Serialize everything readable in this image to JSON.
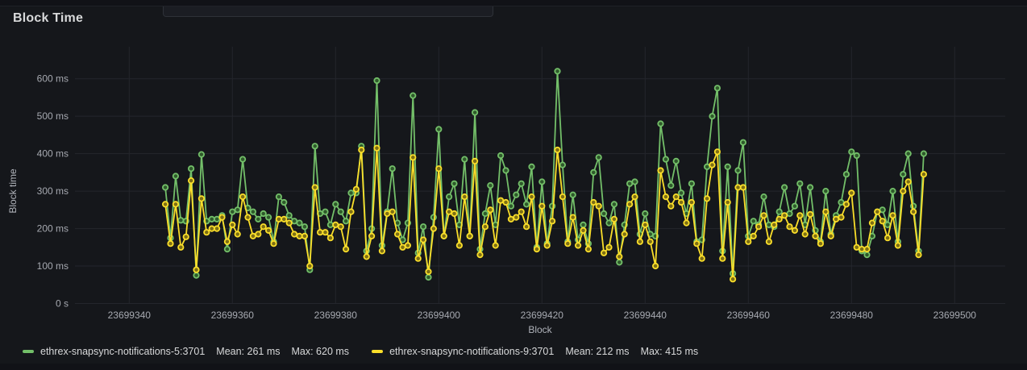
{
  "panel": {
    "title": "Block Time"
  },
  "chart_data": {
    "type": "line",
    "title": "Block Time",
    "xlabel": "Block",
    "ylabel": "Block time",
    "grid": true,
    "legend_position": "bottom-left",
    "x_ticks": [
      23699340,
      23699360,
      23699380,
      23699400,
      23699420,
      23699440,
      23699460,
      23699480,
      23699500
    ],
    "y_ticks": [
      {
        "value": 0,
        "label": "0 s"
      },
      {
        "value": 100,
        "label": "100 ms"
      },
      {
        "value": 200,
        "label": "200 ms"
      },
      {
        "value": 300,
        "label": "300 ms"
      },
      {
        "value": 400,
        "label": "400 ms"
      },
      {
        "value": 500,
        "label": "500 ms"
      },
      {
        "value": 600,
        "label": "600 ms"
      }
    ],
    "ylim": [
      0,
      650
    ],
    "blocks_start": 23699347,
    "blocks_end": 23699494,
    "series": [
      {
        "name": "ethrex-snapsync-notifications-5:3701",
        "color": "#73bf69",
        "marker_fill": "#2f5a2b",
        "stats": {
          "mean": "Mean: 261 ms",
          "max": "Max: 620 ms"
        },
        "values": [
          310,
          175,
          340,
          222,
          220,
          360,
          75,
          398,
          220,
          225,
          225,
          235,
          145,
          245,
          250,
          385,
          255,
          245,
          225,
          240,
          230,
          165,
          285,
          270,
          235,
          220,
          215,
          205,
          90,
          420,
          240,
          245,
          210,
          265,
          245,
          220,
          295,
          295,
          420,
          140,
          200,
          595,
          155,
          245,
          360,
          215,
          170,
          215,
          555,
          135,
          205,
          70,
          230,
          465,
          180,
          285,
          320,
          210,
          385,
          180,
          510,
          145,
          240,
          315,
          210,
          395,
          355,
          260,
          290,
          320,
          265,
          365,
          150,
          325,
          160,
          260,
          620,
          370,
          165,
          290,
          170,
          210,
          160,
          350,
          390,
          240,
          215,
          265,
          110,
          210,
          320,
          325,
          185,
          240,
          185,
          180,
          480,
          385,
          315,
          380,
          295,
          240,
          320,
          165,
          170,
          365,
          500,
          575,
          140,
          365,
          80,
          355,
          430,
          180,
          220,
          210,
          285,
          210,
          205,
          245,
          310,
          240,
          260,
          320,
          210,
          310,
          195,
          165,
          300,
          185,
          235,
          270,
          345,
          405,
          395,
          140,
          130,
          180,
          245,
          250,
          210,
          300,
          165,
          345,
          400,
          260,
          140,
          400
        ]
      },
      {
        "name": "ethrex-snapsync-notifications-9:3701",
        "color": "#fade2a",
        "marker_fill": "#7d6f15",
        "stats": {
          "mean": "Mean: 212 ms",
          "max": "Max: 415 ms"
        },
        "values": [
          265,
          160,
          265,
          150,
          178,
          328,
          90,
          280,
          190,
          200,
          200,
          230,
          165,
          210,
          185,
          285,
          230,
          180,
          185,
          205,
          195,
          160,
          225,
          225,
          215,
          185,
          180,
          180,
          100,
          310,
          190,
          190,
          175,
          210,
          205,
          145,
          245,
          305,
          410,
          125,
          180,
          415,
          140,
          240,
          245,
          185,
          150,
          155,
          390,
          120,
          170,
          85,
          200,
          360,
          180,
          245,
          240,
          155,
          285,
          180,
          380,
          130,
          205,
          250,
          155,
          275,
          270,
          225,
          230,
          245,
          205,
          285,
          145,
          260,
          155,
          220,
          410,
          285,
          160,
          230,
          155,
          195,
          145,
          270,
          260,
          135,
          150,
          225,
          125,
          185,
          265,
          285,
          165,
          210,
          165,
          100,
          355,
          285,
          260,
          285,
          270,
          215,
          270,
          160,
          120,
          280,
          370,
          405,
          120,
          270,
          65,
          310,
          310,
          165,
          180,
          205,
          235,
          165,
          210,
          225,
          235,
          205,
          195,
          235,
          185,
          238,
          180,
          160,
          245,
          180,
          225,
          230,
          265,
          295,
          150,
          145,
          145,
          215,
          245,
          220,
          175,
          235,
          155,
          300,
          325,
          245,
          130,
          345
        ]
      }
    ],
    "colors": {
      "background": "#15171b",
      "page_background": "#111217",
      "gridline": "#24262c",
      "axis_text": "#a6a9b0",
      "title_text": "#d8d9da"
    }
  }
}
